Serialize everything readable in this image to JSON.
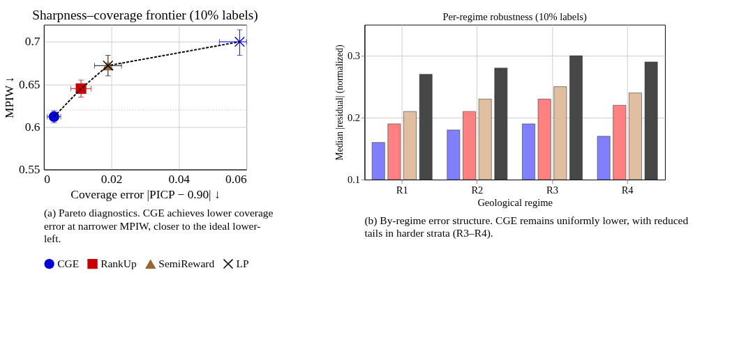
{
  "chart_data": [
    {
      "type": "scatter",
      "title": "Sharpness–coverage frontier (10% labels)",
      "xlabel": "Coverage error |PICP − 0.90| ↓",
      "ylabel": "MPIW ↓",
      "xlim": [
        0,
        0.06
      ],
      "xticks": [
        0,
        0.02,
        0.04,
        0.06
      ],
      "ylim": [
        0.55,
        0.72
      ],
      "yticks": [
        0.55,
        0.6,
        0.65,
        0.7
      ],
      "grid": true,
      "legend": "bottom",
      "series": [
        {
          "type": "line",
          "line_style": "dashed",
          "color": "#000000",
          "marker": "none",
          "x": [
            0.003,
            0.011,
            0.019,
            0.058
          ],
          "values": [
            0.612,
            0.645,
            0.672,
            0.7
          ]
        },
        {
          "name": "CGE",
          "color": "#0000dd",
          "marker": "circle",
          "x": [
            0.003
          ],
          "values": [
            0.612
          ],
          "errors": [
            [
              0.605,
              0.619
            ]
          ],
          "xerrors": [
            [
              0.001,
              0.005
            ]
          ]
        },
        {
          "name": "RankUp",
          "color": "#cc0000",
          "marker": "square",
          "x": [
            0.011
          ],
          "values": [
            0.645
          ],
          "errors": [
            [
              0.635,
              0.655
            ]
          ],
          "xerrors": [
            [
              0.008,
              0.014
            ]
          ]
        },
        {
          "name": "SemiReward",
          "color": "#996633",
          "marker": "triangle",
          "x": [
            0.019
          ],
          "values": [
            0.672
          ]
        },
        {
          "name": "LP",
          "color": "#000000",
          "marker": "cross",
          "x": [
            0.019
          ],
          "values": [
            0.672
          ],
          "errors": [
            [
              0.66,
              0.684
            ]
          ],
          "xerrors": [
            [
              0.015,
              0.023
            ]
          ]
        },
        {
          "color": "#0000ff",
          "marker": "cross",
          "x": [
            0.058
          ],
          "values": [
            0.7
          ],
          "errors": [
            [
              0.684,
              0.714
            ]
          ],
          "xerrors": [
            [
              0.052,
              0.06
            ]
          ]
        }
      ],
      "ref_lines": [
        {
          "axis": "y",
          "value": 0.62,
          "color": "#aaaaaa",
          "line_style": "dotted"
        }
      ],
      "annotations": [
        "(a) Pareto diagnostics. CGE achieves lower coverage error at narrower MPIW, closer to the ideal lower-left."
      ]
    },
    {
      "type": "bar",
      "title": "Per-regime robustness (10% labels)",
      "xlabel": "Geological regime",
      "ylabel": "Median |residual| (normalized)",
      "categories": [
        "R1",
        "R2",
        "R3",
        "R4"
      ],
      "ylim": [
        0.1,
        0.35
      ],
      "yticks": [
        0.1,
        0.2,
        0.3
      ],
      "grid": true,
      "series": [
        {
          "color": "#8080ff",
          "values": [
            0.16,
            0.18,
            0.19,
            0.17
          ]
        },
        {
          "color": "#ff8080",
          "values": [
            0.19,
            0.21,
            0.23,
            0.22
          ]
        },
        {
          "color": "#dfbf9f",
          "values": [
            0.21,
            0.23,
            0.25,
            0.24
          ]
        },
        {
          "color": "#474747",
          "values": [
            0.27,
            0.28,
            0.3,
            0.29
          ]
        }
      ],
      "annotations": [
        "(b) By-regime error structure. CGE remains uniformly lower, with reduced tails in harder strata (R3–R4)."
      ]
    }
  ]
}
